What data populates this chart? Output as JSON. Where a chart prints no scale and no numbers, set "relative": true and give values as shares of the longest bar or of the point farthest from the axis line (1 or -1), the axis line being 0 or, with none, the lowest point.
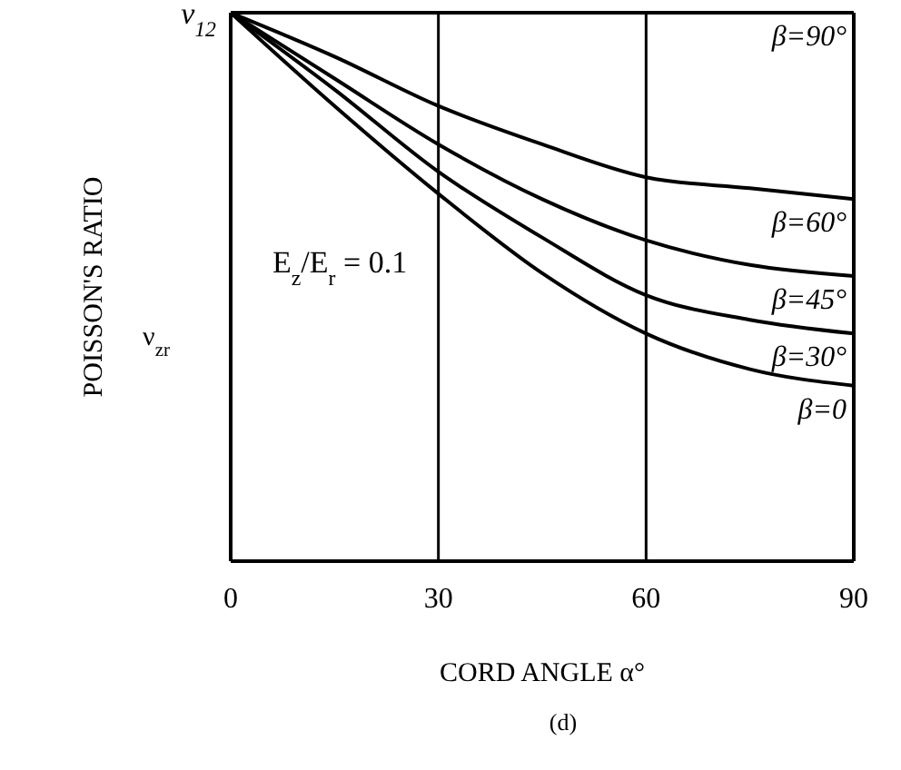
{
  "chart_data": {
    "type": "line",
    "relative": true,
    "xlabel": "CORD ANGLE α°",
    "ylabel": "POISSON'S RATIO",
    "x": [
      0,
      15,
      30,
      45,
      60,
      75,
      90
    ],
    "xlim": [
      0,
      90
    ],
    "xticks": [
      0,
      30,
      60,
      90
    ],
    "ref_lines": [
      {
        "axis": "x",
        "value": 30,
        "color": "#000000"
      },
      {
        "axis": "x",
        "value": 60,
        "color": "#000000"
      }
    ],
    "line_style": "solid",
    "series": [
      {
        "name": "β=90°",
        "color": "#000000",
        "values": [
          1,
          1,
          1,
          1,
          1,
          1,
          1
        ]
      },
      {
        "name": "β=60°",
        "color": "#000000",
        "values": [
          1,
          0.92,
          0.83,
          0.76,
          0.7,
          0.68,
          0.66
        ]
      },
      {
        "name": "β=45°",
        "color": "#000000",
        "values": [
          1,
          0.88,
          0.76,
          0.66,
          0.585,
          0.54,
          0.52
        ]
      },
      {
        "name": "β=30°",
        "color": "#000000",
        "values": [
          1,
          0.86,
          0.71,
          0.59,
          0.485,
          0.44,
          0.415
        ]
      },
      {
        "name": "β=0",
        "color": "#000000",
        "values": [
          1,
          0.83,
          0.67,
          0.525,
          0.415,
          0.35,
          0.32
        ]
      }
    ],
    "annotations": [
      {
        "text": "ν$_{12}$",
        "x": 0,
        "y": 1
      },
      "E$_{z}$/E$_{r}$ = 0.1",
      "ν$_{zr}$",
      "(d)"
    ]
  }
}
